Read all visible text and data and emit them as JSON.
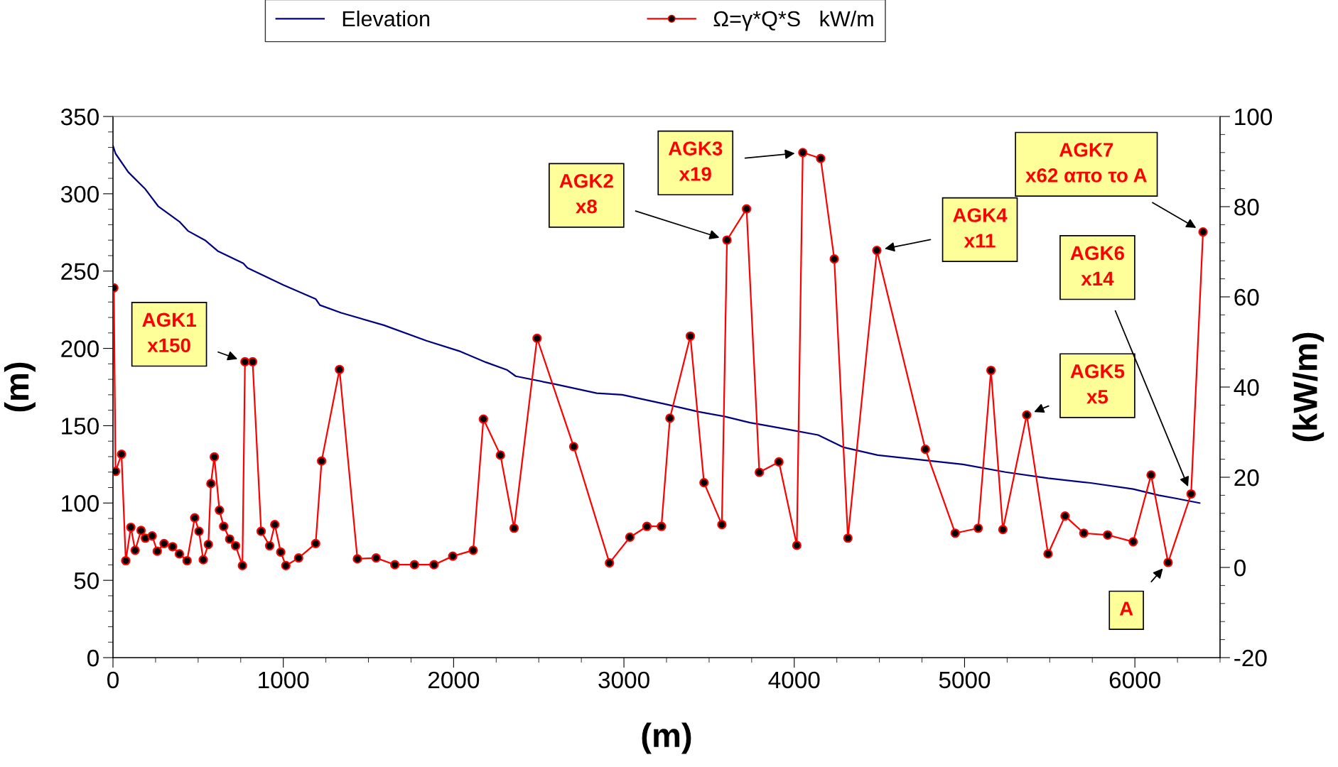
{
  "chart_data": {
    "type": "line",
    "xlabel": "(m)",
    "ylabel": "(m)",
    "y2label": "(kW/m)",
    "xlim": [
      0,
      6500
    ],
    "xticks": [
      0,
      1000,
      2000,
      3000,
      4000,
      5000,
      6000
    ],
    "ylim": [
      0,
      350
    ],
    "yticks": [
      0,
      50,
      100,
      150,
      200,
      250,
      300,
      350
    ],
    "y2lim": [
      -20,
      100
    ],
    "y2ticks": [
      -20,
      0,
      20,
      40,
      60,
      80,
      100
    ],
    "legend": "top",
    "grid": false,
    "line_style": "solid",
    "series": [
      {
        "name": "Elevation",
        "color": "#000080",
        "axis": "y",
        "marker": "none",
        "x": [
          0,
          15,
          90,
          190,
          265,
          390,
          440,
          540,
          615,
          765,
          790,
          1000,
          1190,
          1215,
          1340,
          1590,
          1840,
          2040,
          2190,
          2315,
          2365,
          2590,
          2840,
          2990,
          3240,
          3440,
          3590,
          3740,
          3840,
          3990,
          4140,
          4215,
          4290,
          4490,
          4740,
          4990,
          5240,
          5490,
          5740,
          5990,
          6140,
          6240,
          6380
        ],
        "values": [
          331,
          326,
          314,
          303,
          292,
          282,
          276,
          270,
          263,
          255,
          252,
          241,
          232,
          228,
          223,
          215,
          205,
          198,
          191,
          186,
          182,
          177,
          171,
          170,
          164,
          159,
          156,
          152,
          150,
          147,
          144,
          140,
          136,
          131,
          128,
          125,
          120,
          116,
          113,
          109,
          105,
          103,
          100
        ]
      },
      {
        "name": "Ω=γ*Q*S   kW/m",
        "color": "#ff0000",
        "axis": "y2",
        "marker": "circle",
        "x": [
          5,
          15,
          50,
          75,
          105,
          130,
          165,
          190,
          230,
          260,
          300,
          350,
          390,
          435,
          480,
          505,
          530,
          560,
          575,
          595,
          625,
          650,
          685,
          720,
          760,
          775,
          820,
          870,
          920,
          950,
          985,
          1015,
          1090,
          1190,
          1225,
          1330,
          1435,
          1545,
          1655,
          1770,
          1885,
          1995,
          2115,
          2175,
          2275,
          2355,
          2490,
          2705,
          2915,
          3035,
          3135,
          3220,
          3270,
          3390,
          3470,
          3575,
          3605,
          3720,
          3795,
          3910,
          4015,
          4050,
          4155,
          4235,
          4315,
          4485,
          4770,
          4945,
          5080,
          5155,
          5225,
          5365,
          5490,
          5590,
          5700,
          5840,
          5990,
          6095,
          6195,
          6330,
          6400
        ],
        "values": [
          62.0,
          21.3,
          25.1,
          1.5,
          8.9,
          3.8,
          8.2,
          6.5,
          7.0,
          3.6,
          5.3,
          4.6,
          3.0,
          1.5,
          11.0,
          8.0,
          1.7,
          5.1,
          18.6,
          24.5,
          12.7,
          9.1,
          6.3,
          4.8,
          0.4,
          45.6,
          45.6,
          8.0,
          4.8,
          9.5,
          3.4,
          0.4,
          2.1,
          5.3,
          23.6,
          43.9,
          1.9,
          2.1,
          0.6,
          0.6,
          0.6,
          2.5,
          3.8,
          32.9,
          24.9,
          8.7,
          50.8,
          26.8,
          1.0,
          6.7,
          9.1,
          9.1,
          33.1,
          51.3,
          18.8,
          9.5,
          72.6,
          79.5,
          21.1,
          23.4,
          4.9,
          92.0,
          90.7,
          68.4,
          6.5,
          70.3,
          26.2,
          7.6,
          8.7,
          43.7,
          8.4,
          33.8,
          3.0,
          11.4,
          7.6,
          7.2,
          5.7,
          20.5,
          1.1,
          16.3,
          74.4
        ]
      }
    ],
    "annotations": [
      "AGK1\nx150",
      "AGK2\nx8",
      "AGK3\nx19",
      "AGK4\nx11",
      "AGK5\nx5",
      "AGK6\nx14",
      "AGK7\nx62 απο το A",
      "A"
    ]
  }
}
